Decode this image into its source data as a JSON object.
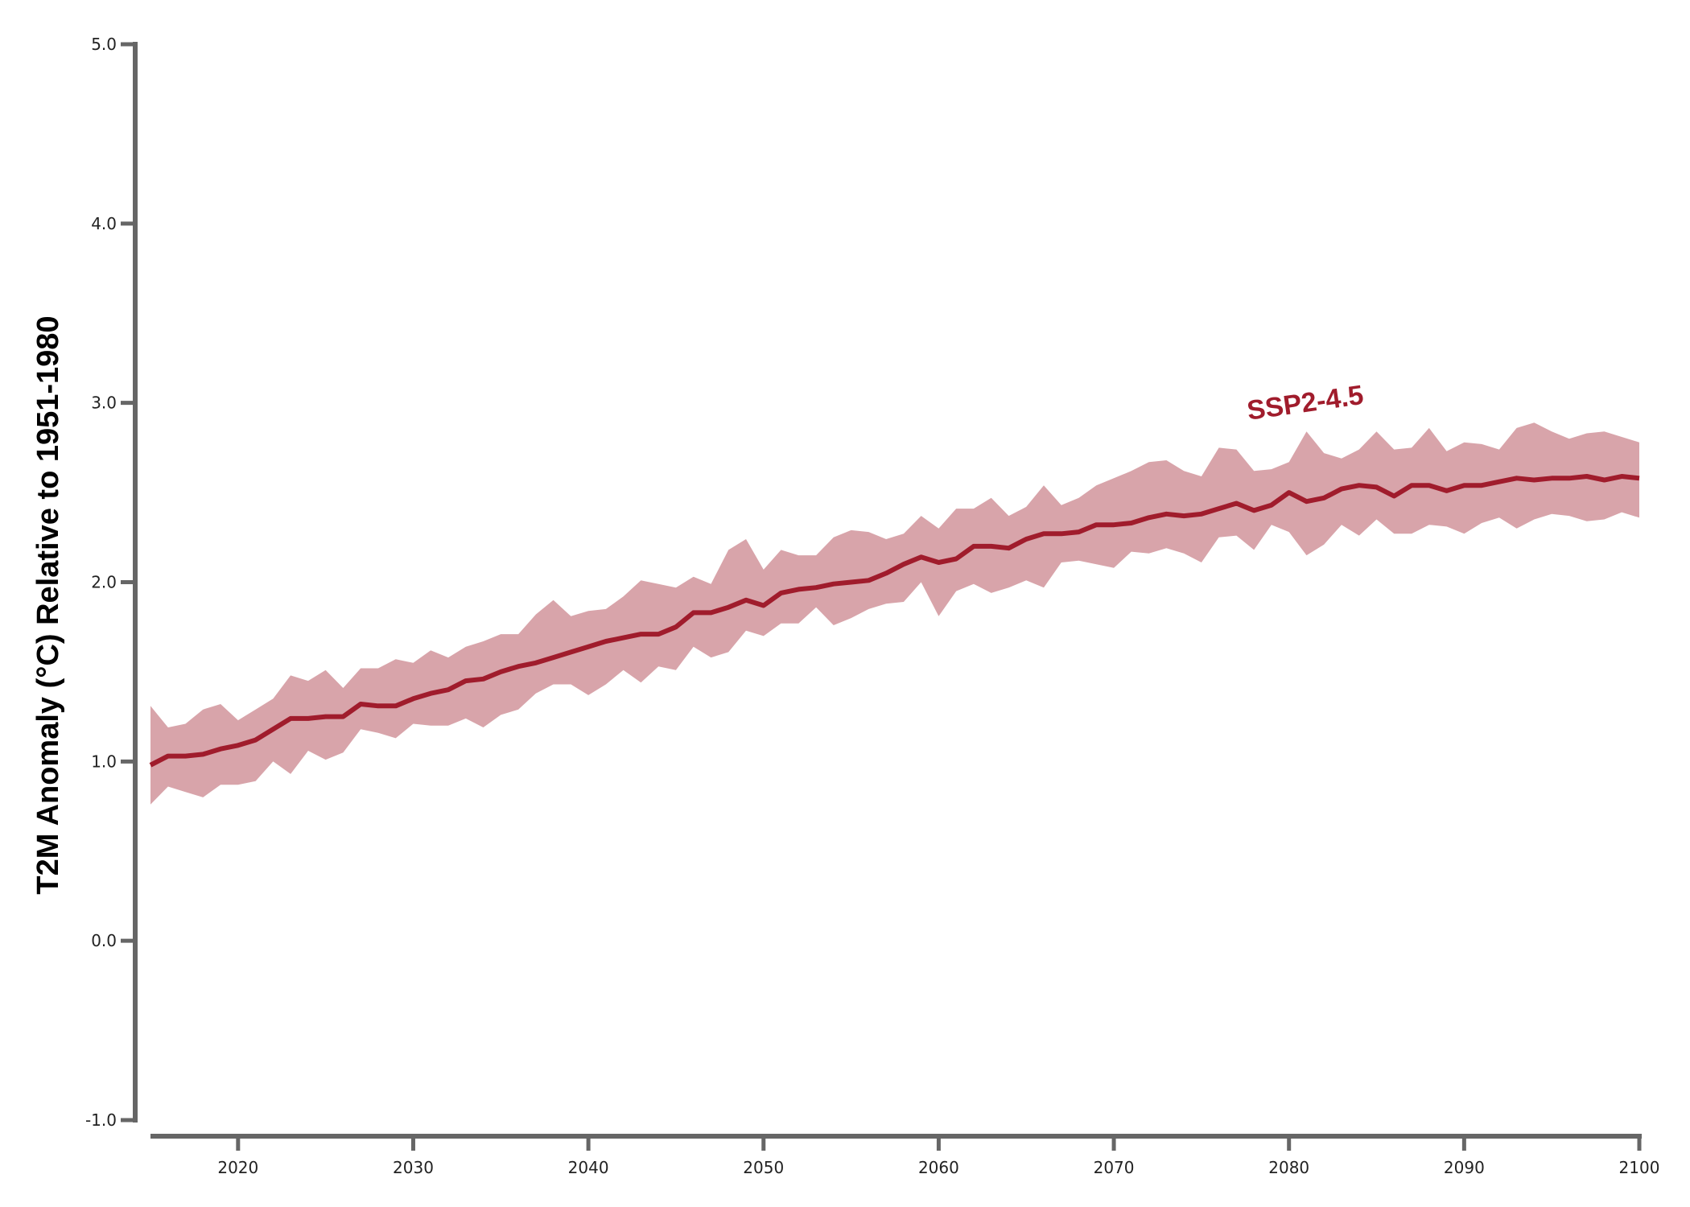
{
  "chart_data": {
    "type": "line",
    "ylabel": "T2M Anomaly (°C) Relative to 1951-1980",
    "xlabel": "",
    "xlim": [
      2015,
      2100
    ],
    "ylim": [
      -1.0,
      5.0
    ],
    "x_ticks": [
      2020,
      2030,
      2040,
      2050,
      2060,
      2070,
      2080,
      2090,
      2100
    ],
    "y_ticks": [
      -1.0,
      0.0,
      1.0,
      2.0,
      3.0,
      4.0,
      5.0
    ],
    "y_tick_labels": [
      "-1.0",
      "0.0",
      "1.0",
      "2.0",
      "3.0",
      "4.0",
      "5.0"
    ],
    "grid": false,
    "colors": {
      "line": "#a01c2c",
      "band": "#d8a4aa",
      "axis": "#666666"
    },
    "annotation": {
      "text": "SSP2-4.5",
      "x": 2081,
      "y": 2.95
    },
    "series": [
      {
        "name": "SSP2-4.5",
        "x": [
          2015,
          2016,
          2017,
          2018,
          2019,
          2020,
          2021,
          2022,
          2023,
          2024,
          2025,
          2026,
          2027,
          2028,
          2029,
          2030,
          2031,
          2032,
          2033,
          2034,
          2035,
          2036,
          2037,
          2038,
          2039,
          2040,
          2041,
          2042,
          2043,
          2044,
          2045,
          2046,
          2047,
          2048,
          2049,
          2050,
          2051,
          2052,
          2053,
          2054,
          2055,
          2056,
          2057,
          2058,
          2059,
          2060,
          2061,
          2062,
          2063,
          2064,
          2065,
          2066,
          2067,
          2068,
          2069,
          2070,
          2071,
          2072,
          2073,
          2074,
          2075,
          2076,
          2077,
          2078,
          2079,
          2080,
          2081,
          2082,
          2083,
          2084,
          2085,
          2086,
          2087,
          2088,
          2089,
          2090,
          2091,
          2092,
          2093,
          2094,
          2095,
          2096,
          2097,
          2098,
          2099,
          2100
        ],
        "mean": [
          0.98,
          1.03,
          1.03,
          1.04,
          1.07,
          1.09,
          1.12,
          1.18,
          1.24,
          1.24,
          1.25,
          1.25,
          1.32,
          1.31,
          1.31,
          1.35,
          1.38,
          1.4,
          1.45,
          1.46,
          1.5,
          1.53,
          1.55,
          1.58,
          1.61,
          1.64,
          1.67,
          1.69,
          1.71,
          1.71,
          1.75,
          1.83,
          1.83,
          1.86,
          1.9,
          1.87,
          1.94,
          1.96,
          1.97,
          1.99,
          2.0,
          2.01,
          2.05,
          2.1,
          2.14,
          2.11,
          2.13,
          2.2,
          2.2,
          2.19,
          2.24,
          2.27,
          2.27,
          2.28,
          2.32,
          2.32,
          2.33,
          2.36,
          2.38,
          2.37,
          2.38,
          2.41,
          2.44,
          2.4,
          2.43,
          2.5,
          2.45,
          2.47,
          2.52,
          2.54,
          2.53,
          2.48,
          2.54,
          2.54,
          2.51,
          2.54,
          2.54,
          2.56,
          2.58,
          2.57,
          2.58,
          2.58,
          2.59,
          2.57,
          2.59,
          2.58
        ],
        "upper": [
          1.31,
          1.19,
          1.21,
          1.29,
          1.32,
          1.23,
          1.29,
          1.35,
          1.48,
          1.45,
          1.51,
          1.41,
          1.52,
          1.52,
          1.57,
          1.55,
          1.62,
          1.58,
          1.64,
          1.67,
          1.71,
          1.71,
          1.82,
          1.9,
          1.81,
          1.84,
          1.85,
          1.92,
          2.01,
          1.99,
          1.97,
          2.03,
          1.99,
          2.18,
          2.24,
          2.07,
          2.18,
          2.15,
          2.15,
          2.25,
          2.29,
          2.28,
          2.24,
          2.27,
          2.37,
          2.3,
          2.41,
          2.41,
          2.47,
          2.37,
          2.42,
          2.54,
          2.43,
          2.47,
          2.54,
          2.58,
          2.62,
          2.67,
          2.68,
          2.62,
          2.59,
          2.75,
          2.74,
          2.62,
          2.63,
          2.67,
          2.84,
          2.72,
          2.69,
          2.74,
          2.84,
          2.74,
          2.75,
          2.86,
          2.73,
          2.78,
          2.77,
          2.74,
          2.86,
          2.89,
          2.84,
          2.8,
          2.83,
          2.84,
          2.81,
          2.78
        ],
        "lower": [
          0.76,
          0.86,
          0.83,
          0.8,
          0.87,
          0.87,
          0.89,
          1.0,
          0.93,
          1.06,
          1.01,
          1.05,
          1.18,
          1.16,
          1.13,
          1.21,
          1.2,
          1.2,
          1.24,
          1.19,
          1.26,
          1.29,
          1.38,
          1.43,
          1.43,
          1.37,
          1.43,
          1.51,
          1.44,
          1.53,
          1.51,
          1.64,
          1.58,
          1.61,
          1.73,
          1.7,
          1.77,
          1.77,
          1.86,
          1.76,
          1.8,
          1.85,
          1.88,
          1.89,
          2.0,
          1.81,
          1.95,
          1.99,
          1.94,
          1.97,
          2.01,
          1.97,
          2.11,
          2.12,
          2.1,
          2.08,
          2.17,
          2.16,
          2.19,
          2.16,
          2.11,
          2.25,
          2.26,
          2.18,
          2.32,
          2.28,
          2.15,
          2.21,
          2.32,
          2.26,
          2.35,
          2.27,
          2.27,
          2.32,
          2.31,
          2.27,
          2.33,
          2.36,
          2.3,
          2.35,
          2.38,
          2.37,
          2.34,
          2.35,
          2.39,
          2.36
        ]
      }
    ]
  }
}
